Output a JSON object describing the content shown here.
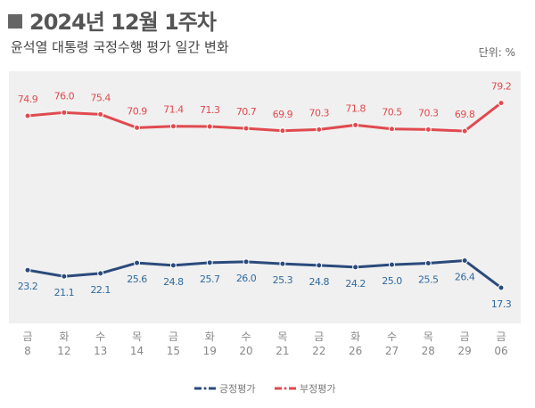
{
  "chart_data": {
    "type": "line",
    "title": "2024년 12월 1주차",
    "subtitle": "윤석열 대통령 국정수행 평가 일간 변화",
    "unit": "단위: %",
    "categories": [
      {
        "day": "금",
        "date": "8"
      },
      {
        "day": "화",
        "date": "12"
      },
      {
        "day": "수",
        "date": "13"
      },
      {
        "day": "목",
        "date": "14"
      },
      {
        "day": "금",
        "date": "15"
      },
      {
        "day": "화",
        "date": "19"
      },
      {
        "day": "수",
        "date": "20"
      },
      {
        "day": "목",
        "date": "21"
      },
      {
        "day": "금",
        "date": "22"
      },
      {
        "day": "화",
        "date": "26"
      },
      {
        "day": "수",
        "date": "27"
      },
      {
        "day": "목",
        "date": "28"
      },
      {
        "day": "금",
        "date": "29"
      },
      {
        "day": "금",
        "date": "06"
      }
    ],
    "series": [
      {
        "name": "긍정평가",
        "color": "#2b4a7c",
        "label_color": "#2f6a9e",
        "values": [
          23.2,
          21.1,
          22.1,
          25.6,
          24.8,
          25.7,
          26.0,
          25.3,
          24.8,
          24.2,
          25.0,
          25.5,
          26.4,
          17.3
        ]
      },
      {
        "name": "부정평가",
        "color": "#e04a4f",
        "label_color": "#e04a4f",
        "values": [
          74.9,
          76.0,
          75.4,
          70.9,
          71.4,
          71.3,
          70.7,
          69.9,
          70.3,
          71.8,
          70.5,
          70.3,
          69.8,
          79.2
        ]
      }
    ],
    "legend_position": "bottom",
    "grid": false,
    "background_color": "#f0f0f0"
  }
}
